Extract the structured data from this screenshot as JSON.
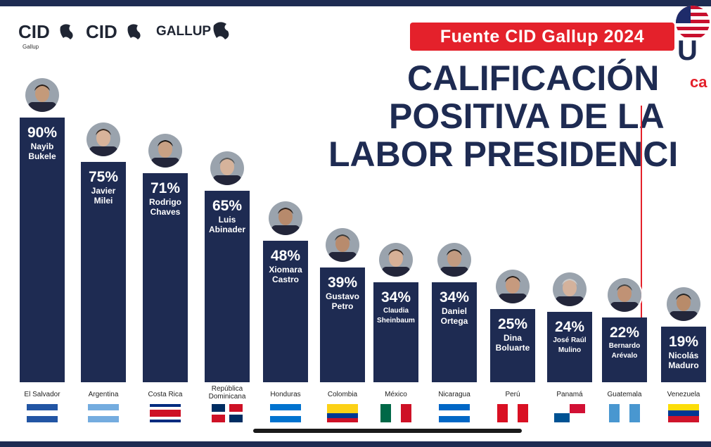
{
  "header": {
    "logos": [
      "CID",
      "CID",
      "GALLUP"
    ],
    "logo_sub": "Gallup",
    "source_badge": "Fuente CID Gallup 2024",
    "title_lines": [
      "CALIFICACIÓN",
      "POSITIVA DE LA",
      "LABOR PRESIDENCI"
    ],
    "corner_letters": [
      "U",
      "ca"
    ]
  },
  "colors": {
    "bar": "#1e2b52",
    "badge": "#e4212b",
    "title": "#1e2b52"
  },
  "chart_data": {
    "type": "bar",
    "title": "CALIFICACIÓN POSITIVA DE LA LABOR PRESIDENCI",
    "unit": "%",
    "ylim": [
      0,
      100
    ],
    "categories": [
      "El Salvador",
      "Argentina",
      "Costa Rica",
      "República Dominicana",
      "Honduras",
      "Colombia",
      "México",
      "Nicaragua",
      "Perú",
      "Panamá",
      "Guatemala",
      "Venezuela"
    ],
    "values": [
      90,
      75,
      71,
      65,
      48,
      39,
      34,
      34,
      25,
      24,
      22,
      19
    ],
    "value_labels": [
      "90%",
      "75%",
      "71%",
      "65%",
      "48%",
      "39%",
      "34%",
      "34%",
      "25%",
      "24%",
      "22%",
      "19%"
    ],
    "country_labels": [
      "El Salvador",
      "Argentina",
      "Costa Rica",
      "República\nDominicana",
      "Honduras",
      "Colombia",
      "México",
      "Nicaragua",
      "Perú",
      "Panamá",
      "Guatemala",
      "Venezuela"
    ],
    "leaders": [
      "Nayib\nBukele",
      "Javier\nMilei",
      "Rodrigo\nChaves",
      "Luis\nAbinader",
      "Xiomara\nCastro",
      "Gustavo\nPetro",
      "Claudia\nSheinbaum",
      "Daniel\nOrtega",
      "Dina\nBoluarte",
      "José Raúl\nMulino",
      "Bernardo\nArévalo",
      "Nicolás\nMaduro"
    ],
    "legend": "none",
    "grid": false
  }
}
